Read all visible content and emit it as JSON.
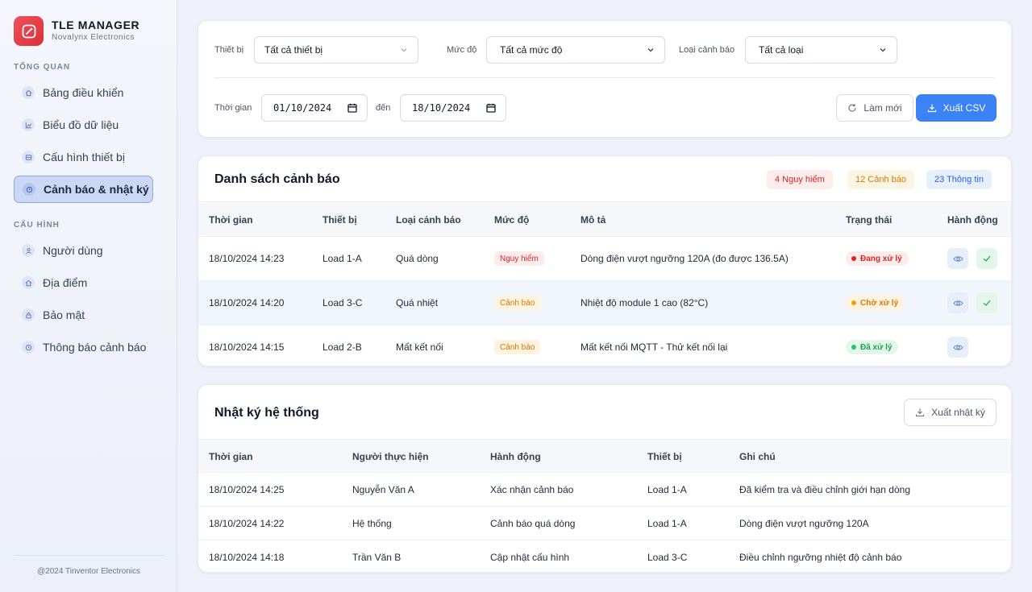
{
  "brand": {
    "title": "TLE MANAGER",
    "subtitle": "Novalynx Electronics"
  },
  "sidebar": {
    "section_overview": "TỔNG QUAN",
    "section_config": "CẤU HÌNH",
    "items": [
      {
        "label": "Bảng điều khiển",
        "icon": "home-icon"
      },
      {
        "label": "Biểu đồ dữ liệu",
        "icon": "chart-icon"
      },
      {
        "label": "Cấu hình thiết bị",
        "icon": "device-icon"
      },
      {
        "label": "Cảnh báo & nhật ký",
        "icon": "alert-icon",
        "active": true
      },
      {
        "label": "Người dùng",
        "icon": "user-icon"
      },
      {
        "label": "Địa điểm",
        "icon": "location-icon"
      },
      {
        "label": "Bảo mật",
        "icon": "lock-icon"
      },
      {
        "label": "Thông báo cảnh báo",
        "icon": "bell-icon"
      }
    ],
    "footer": "@2024 Tinventor Electronics"
  },
  "filters": {
    "device_label": "Thiết bị",
    "device_value": "Tất cả thiết bị",
    "level_label": "Mức độ",
    "level_value": "Tất cả mức độ",
    "type_label": "Loại cảnh báo",
    "type_value": "Tất cả loại",
    "time_label": "Thời gian",
    "date_from": "01/10/2024",
    "to_label": "đến",
    "date_to": "18/10/2024",
    "refresh_label": "Làm mới",
    "export_label": "Xuất CSV"
  },
  "alerts": {
    "title": "Danh sách cảnh báo",
    "badge_danger": "4 Nguy hiểm",
    "badge_warning": "12 Cảnh báo",
    "badge_info": "23 Thông tin",
    "columns": [
      "Thời gian",
      "Thiết bị",
      "Loại cảnh báo",
      "Mức độ",
      "Mô tả",
      "Trạng thái",
      "Hành động"
    ],
    "rows": [
      {
        "time": "18/10/2024 14:23",
        "device": "Load 1-A",
        "type": "Quá dòng",
        "level": "Nguy hiểm",
        "desc": "Dòng điện vượt ngưỡng 120A (đo được 136.5A)",
        "status": "Đang xử lý"
      },
      {
        "time": "18/10/2024 14:20",
        "device": "Load 3-C",
        "type": "Quá nhiệt",
        "level": "Cảnh báo",
        "desc": "Nhiệt độ module 1 cao (82°C)",
        "status": "Chờ xử lý"
      },
      {
        "time": "18/10/2024 14:15",
        "device": "Load 2-B",
        "type": "Mất kết nối",
        "level": "Cảnh báo",
        "desc": "Mất kết nối MQTT - Thử kết nối lại",
        "status": "Đã xử lý"
      }
    ]
  },
  "logs": {
    "title": "Nhật ký hệ thống",
    "export_label": "Xuất nhật ký",
    "columns": [
      "Thời gian",
      "Người thực hiện",
      "Hành động",
      "Thiết bị",
      "Ghi chú"
    ],
    "rows": [
      {
        "time": "18/10/2024 14:25",
        "user": "Nguyễn Văn A",
        "action": "Xác nhận cảnh báo",
        "device": "Load 1-A",
        "note": "Đã kiểm tra và điều chỉnh giới hạn dòng"
      },
      {
        "time": "18/10/2024 14:22",
        "user": "Hệ thống",
        "action": "Cảnh báo quá dòng",
        "device": "Load 1-A",
        "note": "Dòng điện vượt ngưỡng 120A"
      },
      {
        "time": "18/10/2024 14:18",
        "user": "Trần Văn B",
        "action": "Cập nhật cấu hình",
        "device": "Load 3-C",
        "note": "Điều chỉnh ngưỡng nhiệt độ cảnh báo"
      }
    ]
  },
  "colors": {
    "accent": "#3b82f6",
    "danger": "#dc2626",
    "warning": "#d97706",
    "success": "#16a34a"
  }
}
